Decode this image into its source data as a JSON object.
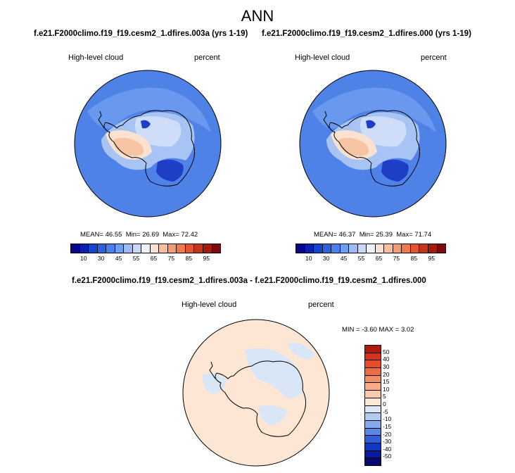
{
  "main_title": "ANN",
  "panels": [
    {
      "title": "f.e21.F2000climo.f19_f19.cesm2_1.dfires.003a (yrs 1-19)",
      "variable": "High-level cloud",
      "units": "percent",
      "mean_label": "MEAN=",
      "mean": "46.55",
      "min_label": "Min=",
      "min": "26.69",
      "max_label": "Max=",
      "max": "72.42"
    },
    {
      "title": "f.e21.F2000climo.f19_f19.cesm2_1.dfires.000 (yrs 1-19)",
      "variable": "High-level cloud",
      "units": "percent",
      "mean_label": "MEAN=",
      "mean": "46.37",
      "min_label": "Min=",
      "min": "25.39",
      "max_label": "Max=",
      "max": "71.74"
    }
  ],
  "diff_panel": {
    "title": "f.e21.F2000climo.f19_f19.cesm2_1.dfires.003a - f.e21.F2000climo.f19_f19.cesm2_1.dfires.000",
    "variable": "High-level cloud",
    "units": "percent",
    "min_label": "MIN =",
    "min": "-3.60",
    "max_label": "MAX =",
    "max": "3.02"
  },
  "colorbar_top": {
    "ticks": [
      "10",
      "30",
      "45",
      "55",
      "65",
      "75",
      "85",
      "95"
    ],
    "colors": [
      "#08088c",
      "#0a22b4",
      "#1444d2",
      "#2a62e2",
      "#4682ee",
      "#6ea0f2",
      "#9cbcf4",
      "#c6d8f8",
      "#ecf2fc",
      "#fbe2d0",
      "#f6c0a0",
      "#f29c74",
      "#ee7a4c",
      "#e4542c",
      "#c8341a",
      "#a41a10",
      "#7c0a08"
    ]
  },
  "colorbar_diff": {
    "ticks": [
      "50",
      "40",
      "30",
      "20",
      "15",
      "10",
      "5",
      "0",
      "-5",
      "-10",
      "-15",
      "-20",
      "-30",
      "-40",
      "-50"
    ],
    "colors": [
      "#b01a0e",
      "#d2321c",
      "#e44e2c",
      "#ec6c44",
      "#f28c64",
      "#f6aa86",
      "#f9caaa",
      "#fce6d4",
      "#dce8f8",
      "#b2cbf3",
      "#86a8ed",
      "#5a86e6",
      "#2e5edc",
      "#1238c2",
      "#081a9e",
      "#050a6e"
    ]
  },
  "map_colors": {
    "ocean_blue": "#4f82e6",
    "ocean_mid": "#6a98ee",
    "light_blue": "#a8c4f4",
    "pale_blue": "#cfdef8",
    "peach": "#f6c4a4",
    "light_peach": "#fbe2d0",
    "dark_blue": "#1e3ec6",
    "diff_peach": "#fde6d4",
    "diff_blue": "#d8e6f8",
    "coast": "#000000"
  }
}
